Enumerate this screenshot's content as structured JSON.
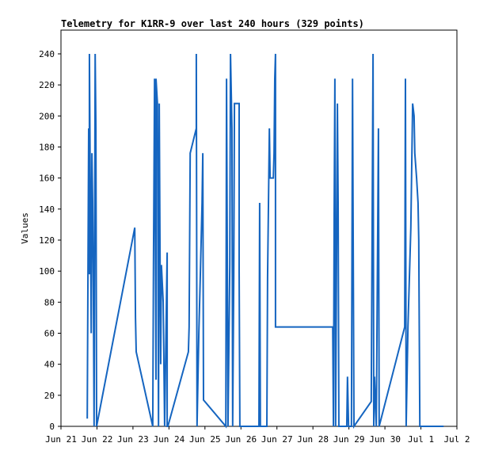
{
  "chart_data": {
    "type": "line",
    "title": "Telemetry for K1RR-9 over last 240 hours (329 points)",
    "y_label": "Values",
    "grid": false,
    "xlim": [
      21,
      32
    ],
    "ylim": [
      0,
      255.3
    ],
    "xticks": [
      {
        "value": 21,
        "label": "Jun 21"
      },
      {
        "value": 22,
        "label": "Jun 22"
      },
      {
        "value": 23,
        "label": "Jun 23"
      },
      {
        "value": 24,
        "label": "Jun 24"
      },
      {
        "value": 25,
        "label": "Jun 25"
      },
      {
        "value": 26,
        "label": "Jun 26"
      },
      {
        "value": 27,
        "label": "Jun 27"
      },
      {
        "value": 28,
        "label": "Jun 28"
      },
      {
        "value": 29,
        "label": "Jun 29"
      },
      {
        "value": 30,
        "label": "Jun 30"
      },
      {
        "value": 31,
        "label": "Jul 1"
      },
      {
        "value": 32,
        "label": "Jul 2"
      }
    ],
    "yticks": [
      0,
      20,
      40,
      60,
      80,
      100,
      120,
      140,
      160,
      180,
      200,
      220,
      240
    ],
    "series": [
      {
        "color": "#1565c0",
        "x": [
          21.73,
          21.77,
          21.79,
          21.79,
          21.84,
          21.86,
          21.88,
          21.9,
          21.92,
          21.95,
          21.97,
          21.99,
          23.05,
          23.07,
          23.09,
          23.55,
          23.57,
          23.6,
          23.64,
          23.64,
          23.68,
          23.71,
          23.73,
          23.75,
          23.77,
          23.79,
          23.84,
          23.86,
          23.88,
          23.95,
          23.95,
          23.97,
          24.54,
          24.56,
          24.59,
          24.76,
          24.76,
          24.78,
          24.83,
          24.87,
          24.92,
          24.94,
          24.96,
          25.58,
          25.6,
          25.62,
          25.64,
          25.69,
          25.71,
          25.75,
          25.77,
          25.8,
          25.82,
          25.95,
          25.95,
          25.97,
          26.5,
          26.52,
          26.54,
          26.72,
          26.74,
          26.79,
          26.81,
          26.9,
          26.92,
          26.94,
          26.96,
          26.96,
          28.55,
          28.57,
          28.59,
          28.61,
          28.63,
          28.68,
          28.7,
          28.72,
          28.94,
          28.96,
          28.99,
          29.07,
          29.1,
          29.12,
          29.14,
          29.62,
          29.67,
          29.69,
          29.71,
          29.76,
          29.82,
          29.84,
          30.55,
          30.57,
          30.59,
          30.64,
          30.68,
          30.72,
          30.77,
          30.81,
          30.83,
          30.88,
          30.92,
          30.94,
          30.97,
          31.63
        ],
        "values": [
          5,
          192,
          98,
          240,
          60,
          176,
          145,
          88,
          0,
          240,
          192,
          0,
          128,
          70,
          48,
          0,
          104,
          224,
          30,
          224,
          208,
          0,
          208,
          120,
          40,
          104,
          80,
          40,
          0,
          112,
          0,
          0,
          48,
          64,
          176,
          192,
          240,
          0,
          60,
          96,
          144,
          176,
          17,
          0,
          224,
          112,
          0,
          104,
          240,
          192,
          0,
          96,
          208,
          208,
          100,
          0,
          0,
          144,
          0,
          0,
          96,
          192,
          160,
          160,
          176,
          224,
          240,
          64,
          64,
          0,
          136,
          224,
          0,
          208,
          144,
          0,
          0,
          32,
          0,
          0,
          224,
          112,
          0,
          16,
          240,
          0,
          32,
          0,
          192,
          0,
          64,
          224,
          0,
          64,
          96,
          128,
          208,
          200,
          176,
          160,
          144,
          120,
          0,
          0
        ]
      }
    ]
  }
}
